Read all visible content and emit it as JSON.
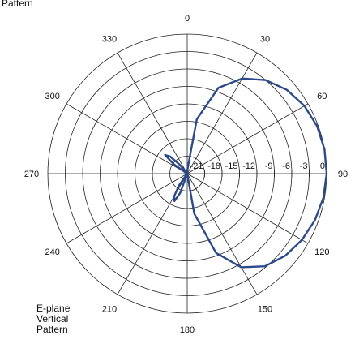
{
  "chart_data": {
    "type": "polar",
    "title_top": "Pattern",
    "title_bottom": [
      "E-plane",
      "Vertical",
      "Pattern"
    ],
    "angle_labels": [
      "0",
      "30",
      "60",
      "90",
      "120",
      "150",
      "180",
      "210",
      "240",
      "270",
      "300",
      "330"
    ],
    "radial_labels": [
      "-21",
      "-18",
      "-15",
      "-12",
      "-9",
      "-6",
      "-3",
      "0"
    ],
    "radial_range_db": [
      -24,
      0
    ],
    "rings": 8,
    "angle_step_deg": 30,
    "series": [
      {
        "color": "#2b4a8a",
        "angles_deg": [
          0,
          10,
          20,
          30,
          40,
          50,
          60,
          70,
          80,
          90,
          100,
          110,
          120,
          130,
          140,
          150,
          160,
          170,
          180,
          190,
          200,
          205,
          210,
          215,
          220,
          225,
          230,
          240,
          250,
          260,
          270,
          280,
          290,
          300,
          305,
          310,
          315,
          320,
          330,
          340,
          350
        ],
        "r_db": [
          -23.5,
          -14.5,
          -8.3,
          -5.1,
          -3.0,
          -1.6,
          -0.7,
          -0.2,
          0,
          0,
          -0.2,
          -0.6,
          -1.2,
          -2.0,
          -3.2,
          -5.4,
          -9.5,
          -17.0,
          -24,
          -24,
          -20.5,
          -18.8,
          -19.5,
          -21.5,
          -24,
          -24,
          -24,
          -24,
          -24,
          -24,
          -24,
          -24,
          -24,
          -24,
          -21.2,
          -19.0,
          -19.8,
          -22.0,
          -24,
          -24,
          -24
        ]
      }
    ]
  }
}
